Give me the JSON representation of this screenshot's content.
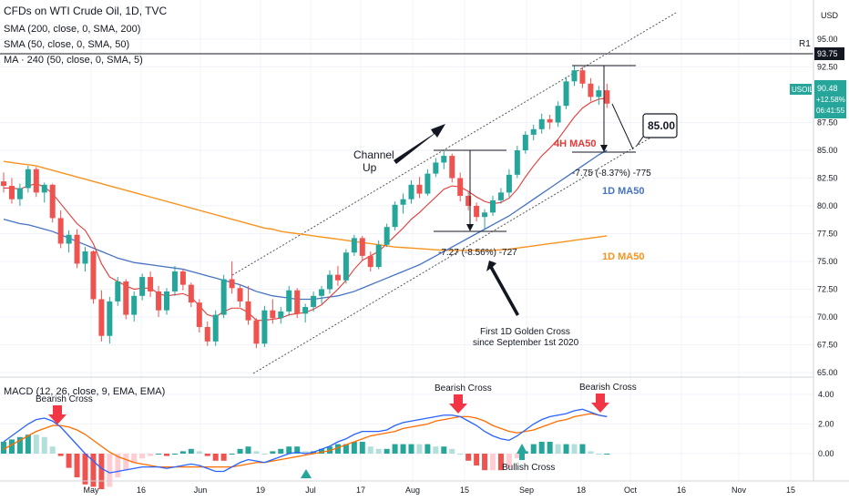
{
  "header": {
    "title": "CFDs on WTI Crude Oil, 1D, TVC",
    "indicators": [
      "SMA (200, close, 0, SMA, 200)",
      "SMA (50, close, 0, SMA, 50)",
      "MA · 240 (50, close, 0, SMA, 5)"
    ],
    "currency": "USD"
  },
  "price_badge": {
    "symbol": "USOIL",
    "price": "90.48",
    "change": "+12.58%",
    "countdown": "06:41:55"
  },
  "r1_label": "R1",
  "r1_value": "93.75",
  "macd_label": "MACD (12, 26, close, 9, EMA, EMA)",
  "annotations": {
    "channel": [
      "Channel",
      "Up"
    ],
    "target": "85.00",
    "ma50_4h": "4H MA50",
    "ma50_1d_blue": "1D MA50",
    "ma50_1d_orange": "1D MA50",
    "measure1": "-7.27 (-8.56%) -727",
    "measure2": "-7.75 (-8.37%) -775",
    "golden_cross": [
      "First 1D Golden Cross",
      "since September 1st 2020"
    ],
    "bearish1": "Bearish Cross",
    "bearish2": "Bearish Cross",
    "bearish3": "Bearish Cross",
    "bullish": "Bullish Cross"
  },
  "colors": {
    "up": "#26a69a",
    "down": "#ef5350",
    "ma4h": "#e53935",
    "ma1d": "#4472c4",
    "ma200": "#f7931e",
    "macd": "#2962ff",
    "signal": "#ff6d00"
  },
  "chart_data": {
    "type": "candlestick",
    "title": "CFDs on WTI Crude Oil, 1D, TVC",
    "y_axis": {
      "range": [
        64.5,
        96.5
      ],
      "ticks": [
        "95.00",
        "92.50",
        "87.50",
        "85.00",
        "82.50",
        "80.00",
        "77.50",
        "75.00",
        "72.50",
        "70.00",
        "67.50",
        "65.00"
      ]
    },
    "x_axis": {
      "ticks": [
        "May",
        "16",
        "Jun",
        "19",
        "Jul",
        "17",
        "Aug",
        "15",
        "Sep",
        "18",
        "Oct",
        "16",
        "Nov",
        "15"
      ]
    },
    "macd_axis": {
      "range": [
        -1.5,
        5.0
      ],
      "ticks": [
        "4.00",
        "2.00",
        "0.00"
      ]
    },
    "candles": [
      [
        82.2,
        83.0,
        81.2,
        81.8
      ],
      [
        81.8,
        82.5,
        80.2,
        80.6
      ],
      [
        80.6,
        82.0,
        80.0,
        81.6
      ],
      [
        81.6,
        83.6,
        81.2,
        83.3
      ],
      [
        83.3,
        83.5,
        80.8,
        81.2
      ],
      [
        81.2,
        82.1,
        80.3,
        81.9
      ],
      [
        81.9,
        82.0,
        78.5,
        78.9
      ],
      [
        78.9,
        79.6,
        76.2,
        76.6
      ],
      [
        76.6,
        77.8,
        75.8,
        77.4
      ],
      [
        77.4,
        77.9,
        74.4,
        74.8
      ],
      [
        74.8,
        76.3,
        74.1,
        75.9
      ],
      [
        75.9,
        76.0,
        71.2,
        71.6
      ],
      [
        71.6,
        72.4,
        67.8,
        68.3
      ],
      [
        68.3,
        71.8,
        67.6,
        71.4
      ],
      [
        71.4,
        73.6,
        71.0,
        73.2
      ],
      [
        73.2,
        73.4,
        69.8,
        70.2
      ],
      [
        70.2,
        72.3,
        69.6,
        71.9
      ],
      [
        71.9,
        73.9,
        71.5,
        73.6
      ],
      [
        73.6,
        74.1,
        71.8,
        72.3
      ],
      [
        72.3,
        72.8,
        70.0,
        70.6
      ],
      [
        70.6,
        72.6,
        70.2,
        72.3
      ],
      [
        72.3,
        74.6,
        71.9,
        74.1
      ],
      [
        74.1,
        74.3,
        72.4,
        72.9
      ],
      [
        72.9,
        73.1,
        70.9,
        71.3
      ],
      [
        71.3,
        71.6,
        68.6,
        69.1
      ],
      [
        69.1,
        69.6,
        67.4,
        67.8
      ],
      [
        67.8,
        70.6,
        67.4,
        70.2
      ],
      [
        70.2,
        73.8,
        69.9,
        73.4
      ],
      [
        73.4,
        75.0,
        72.1,
        72.6
      ],
      [
        72.6,
        72.9,
        70.9,
        71.4
      ],
      [
        71.4,
        72.8,
        69.3,
        69.7
      ],
      [
        69.7,
        69.9,
        67.2,
        67.6
      ],
      [
        67.6,
        71.0,
        67.3,
        70.6
      ],
      [
        70.6,
        71.6,
        69.4,
        69.9
      ],
      [
        69.9,
        70.9,
        69.4,
        70.5
      ],
      [
        70.5,
        72.8,
        70.1,
        72.4
      ],
      [
        72.4,
        72.6,
        69.9,
        70.3
      ],
      [
        70.3,
        71.2,
        69.5,
        70.9
      ],
      [
        70.9,
        72.3,
        70.5,
        71.9
      ],
      [
        71.9,
        72.8,
        71.2,
        72.5
      ],
      [
        72.5,
        74.2,
        72.1,
        73.8
      ],
      [
        73.8,
        74.6,
        72.8,
        73.3
      ],
      [
        73.3,
        76.1,
        73.0,
        75.8
      ],
      [
        75.8,
        77.4,
        75.5,
        77.1
      ],
      [
        77.1,
        77.3,
        75.1,
        75.5
      ],
      [
        75.5,
        75.9,
        74.1,
        74.5
      ],
      [
        74.5,
        76.9,
        74.3,
        76.5
      ],
      [
        76.5,
        78.4,
        76.3,
        78.1
      ],
      [
        78.1,
        80.4,
        77.8,
        80.1
      ],
      [
        80.1,
        81.1,
        79.3,
        80.6
      ],
      [
        80.6,
        82.3,
        80.2,
        81.9
      ],
      [
        81.9,
        82.6,
        80.7,
        81.1
      ],
      [
        81.1,
        83.3,
        80.9,
        82.9
      ],
      [
        82.9,
        84.3,
        82.6,
        83.9
      ],
      [
        83.9,
        84.9,
        83.3,
        84.5
      ],
      [
        84.5,
        84.7,
        82.1,
        82.5
      ],
      [
        82.5,
        83.0,
        80.4,
        80.9
      ],
      [
        80.9,
        81.3,
        79.6,
        80.0
      ],
      [
        80.0,
        80.3,
        78.6,
        79.0
      ],
      [
        79.0,
        79.7,
        77.9,
        79.4
      ],
      [
        79.4,
        80.9,
        79.1,
        80.5
      ],
      [
        80.5,
        81.6,
        80.2,
        81.2
      ],
      [
        81.2,
        83.3,
        80.8,
        82.8
      ],
      [
        82.8,
        85.4,
        82.5,
        85.0
      ],
      [
        85.0,
        86.7,
        84.7,
        86.4
      ],
      [
        86.4,
        87.3,
        85.9,
        86.9
      ],
      [
        86.9,
        88.3,
        86.5,
        87.8
      ],
      [
        87.8,
        88.2,
        86.9,
        87.5
      ],
      [
        87.5,
        89.4,
        87.1,
        89.0
      ],
      [
        89.0,
        91.6,
        88.7,
        91.2
      ],
      [
        91.2,
        92.6,
        90.8,
        92.2
      ],
      [
        92.2,
        92.5,
        90.6,
        91.0
      ],
      [
        91.0,
        91.5,
        89.4,
        89.8
      ],
      [
        89.8,
        90.8,
        89.1,
        90.4
      ],
      [
        90.4,
        91.0,
        88.8,
        89.2
      ]
    ],
    "ma_4h": [
      81.6,
      81.6,
      81.5,
      81.8,
      82.0,
      81.7,
      81.1,
      80.2,
      79.3,
      78.4,
      77.8,
      76.6,
      74.8,
      73.6,
      73.2,
      72.8,
      72.5,
      72.6,
      72.6,
      72.1,
      71.9,
      72.0,
      72.1,
      71.8,
      71.0,
      70.2,
      70.0,
      70.5,
      70.8,
      70.8,
      70.4,
      69.7,
      69.7,
      69.8,
      69.9,
      70.2,
      70.3,
      70.4,
      70.7,
      71.1,
      71.8,
      72.5,
      73.3,
      74.3,
      75.1,
      75.5,
      75.9,
      76.6,
      77.3,
      78.0,
      78.8,
      79.4,
      80.1,
      80.8,
      81.5,
      81.8,
      81.7,
      81.3,
      80.8,
      80.4,
      80.2,
      80.3,
      80.7,
      81.5,
      82.6,
      83.6,
      84.5,
      85.2,
      86.0,
      87.0,
      88.0,
      88.8,
      89.3,
      89.6,
      89.7
    ],
    "ma_1d_blue": [
      78.8,
      78.6,
      78.4,
      78.3,
      78.1,
      77.9,
      77.7,
      77.4,
      77.1,
      76.8,
      76.5,
      76.2,
      75.9,
      75.6,
      75.3,
      75.1,
      74.9,
      74.8,
      74.7,
      74.6,
      74.5,
      74.4,
      74.3,
      74.1,
      73.9,
      73.7,
      73.5,
      73.3,
      73.1,
      72.9,
      72.6,
      72.3,
      72.1,
      71.9,
      71.8,
      71.7,
      71.6,
      71.6,
      71.6,
      71.7,
      71.8,
      71.9,
      72.1,
      72.3,
      72.6,
      72.9,
      73.2,
      73.5,
      73.8,
      74.1,
      74.4,
      74.7,
      75.1,
      75.5,
      75.9,
      76.3,
      76.7,
      77.1,
      77.5,
      77.9,
      78.3,
      78.7,
      79.1,
      79.6,
      80.1,
      80.6,
      81.1,
      81.6,
      82.1,
      82.6,
      83.1,
      83.6,
      84.1,
      84.6,
      85.0
    ],
    "ma_1d_orange": [
      84.0,
      83.9,
      83.8,
      83.7,
      83.6,
      83.4,
      83.2,
      83.0,
      82.8,
      82.6,
      82.4,
      82.2,
      82.0,
      81.8,
      81.6,
      81.4,
      81.2,
      81.0,
      80.8,
      80.6,
      80.4,
      80.2,
      80.0,
      79.8,
      79.6,
      79.4,
      79.2,
      79.0,
      78.8,
      78.6,
      78.4,
      78.2,
      78.0,
      77.9,
      77.7,
      77.6,
      77.5,
      77.4,
      77.3,
      77.2,
      77.1,
      77.0,
      76.9,
      76.8,
      76.7,
      76.6,
      76.5,
      76.4,
      76.3,
      76.25,
      76.2,
      76.15,
      76.1,
      76.05,
      76.0,
      76.0,
      76.0,
      76.0,
      76.0,
      76.0,
      76.0,
      76.05,
      76.1,
      76.2,
      76.3,
      76.4,
      76.5,
      76.6,
      76.7,
      76.8,
      76.9,
      77.0,
      77.1,
      77.2,
      77.3
    ],
    "macd_line": [
      0.8,
      1.2,
      1.6,
      2.0,
      2.3,
      2.4,
      2.2,
      1.8,
      1.2,
      0.6,
      0.0,
      -0.5,
      -1.0,
      -1.3,
      -1.2,
      -1.1,
      -1.0,
      -0.9,
      -0.9,
      -0.9,
      -1.0,
      -0.9,
      -0.8,
      -0.7,
      -0.8,
      -1.0,
      -1.2,
      -1.2,
      -0.9,
      -0.6,
      -0.4,
      -0.5,
      -0.6,
      -0.4,
      -0.2,
      0.0,
      0.1,
      0.0,
      0.1,
      0.3,
      0.5,
      0.8,
      1.0,
      1.3,
      1.5,
      1.5,
      1.5,
      1.6,
      1.9,
      2.1,
      2.2,
      2.3,
      2.4,
      2.5,
      2.6,
      2.6,
      2.5,
      2.2,
      1.9,
      1.5,
      1.2,
      1.0,
      0.9,
      1.2,
      1.6,
      2.0,
      2.3,
      2.5,
      2.6,
      2.7,
      2.9,
      3.0,
      2.8,
      2.6,
      2.5
    ],
    "signal_line": [
      0.3,
      0.6,
      0.9,
      1.2,
      1.5,
      1.7,
      1.9,
      1.9,
      1.8,
      1.6,
      1.3,
      0.9,
      0.5,
      0.1,
      -0.2,
      -0.4,
      -0.6,
      -0.7,
      -0.8,
      -0.9,
      -0.9,
      -0.9,
      -0.9,
      -0.9,
      -0.9,
      -0.9,
      -0.9,
      -0.9,
      -0.9,
      -0.8,
      -0.7,
      -0.6,
      -0.6,
      -0.5,
      -0.4,
      -0.3,
      -0.2,
      -0.1,
      0.0,
      0.1,
      0.2,
      0.4,
      0.6,
      0.8,
      1.0,
      1.2,
      1.3,
      1.4,
      1.5,
      1.7,
      1.8,
      1.9,
      2.0,
      2.2,
      2.3,
      2.4,
      2.5,
      2.5,
      2.4,
      2.2,
      1.9,
      1.7,
      1.5,
      1.4,
      1.5,
      1.6,
      1.8,
      2.0,
      2.2,
      2.3,
      2.5,
      2.6,
      2.7,
      2.6,
      2.5
    ]
  }
}
